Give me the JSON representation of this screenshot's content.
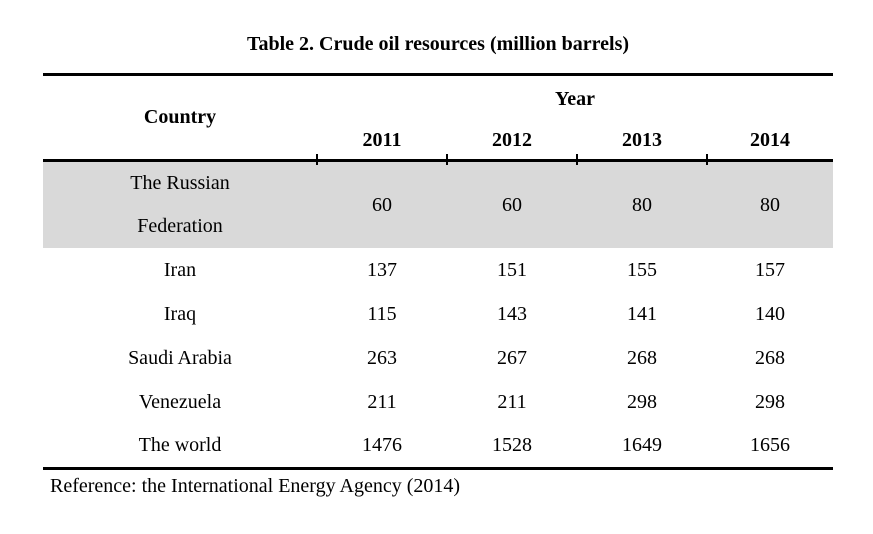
{
  "table": {
    "title": "Table 2. Crude oil resources (million barrels)",
    "header": {
      "country_label": "Country",
      "year_group_label": "Year",
      "years": [
        "2011",
        "2012",
        "2013",
        "2014"
      ]
    },
    "rows": [
      {
        "country": "The Russian\nFederation",
        "values": [
          "60",
          "60",
          "80",
          "80"
        ],
        "highlighted": true
      },
      {
        "country": "Iran",
        "values": [
          "137",
          "151",
          "155",
          "157"
        ],
        "highlighted": false
      },
      {
        "country": "Iraq",
        "values": [
          "115",
          "143",
          "141",
          "140"
        ],
        "highlighted": false
      },
      {
        "country": "Saudi Arabia",
        "values": [
          "263",
          "267",
          "268",
          "268"
        ],
        "highlighted": false
      },
      {
        "country": "Venezuela",
        "values": [
          "211",
          "211",
          "298",
          "298"
        ],
        "highlighted": false
      },
      {
        "country": "The world",
        "values": [
          "1476",
          "1528",
          "1649",
          "1656"
        ],
        "highlighted": false
      }
    ],
    "reference": "Reference: the International Energy Agency (2014)"
  },
  "colors": {
    "highlight_row": "#d9d9d9",
    "rule": "#000000",
    "text": "#000000",
    "background": "#ffffff"
  }
}
